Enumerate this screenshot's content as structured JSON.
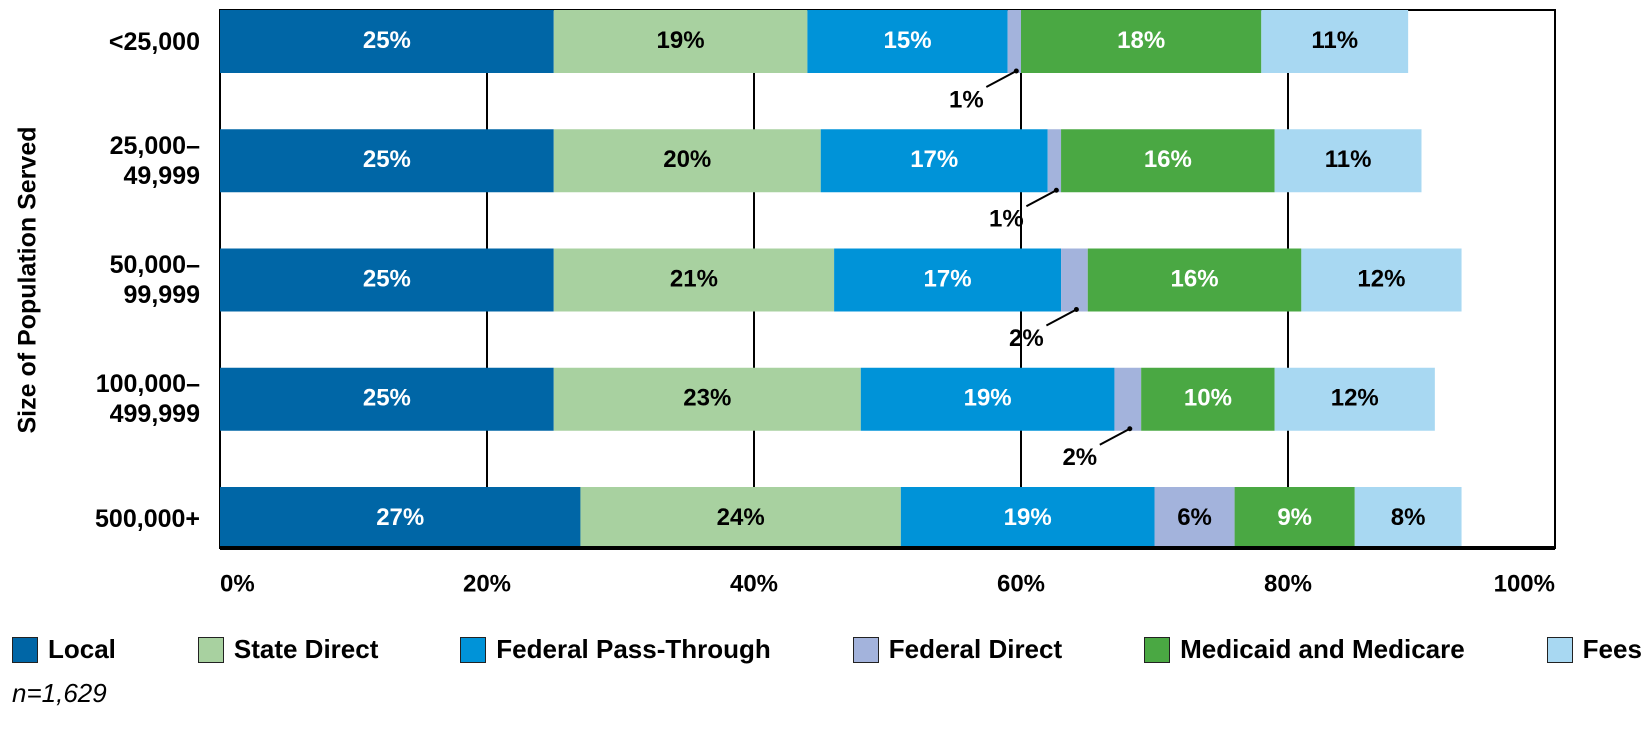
{
  "chart_data": {
    "type": "stacked-bar",
    "orientation": "horizontal",
    "y_axis_label": "Size of Population Served",
    "note": "n=1,629",
    "categories": [
      "<25,000",
      "25,000–49,999",
      "50,000–99,999",
      "100,000–499,999",
      "500,000+"
    ],
    "series": [
      {
        "name": "Local",
        "color": "#0066a6",
        "values": [
          25,
          25,
          25,
          25,
          27
        ],
        "value_labels": [
          "25%",
          "25%",
          "25%",
          "25%",
          "27%"
        ]
      },
      {
        "name": "State Direct",
        "color": "#a8d1a0",
        "values": [
          19,
          20,
          21,
          23,
          24
        ],
        "value_labels": [
          "19%",
          "20%",
          "21%",
          "23%",
          "24%"
        ]
      },
      {
        "name": "Federal Pass-Through",
        "color": "#0093d8",
        "values": [
          15,
          17,
          17,
          19,
          19
        ],
        "value_labels": [
          "15%",
          "17%",
          "17%",
          "19%",
          "19%"
        ]
      },
      {
        "name": "Federal Direct",
        "color": "#a3b3dc",
        "values": [
          1,
          1,
          2,
          2,
          6
        ],
        "value_labels": [
          "1%",
          "1%",
          "2%",
          "2%",
          "6%"
        ]
      },
      {
        "name": "Medicaid and Medicare",
        "color": "#4aa843",
        "values": [
          18,
          16,
          16,
          10,
          9
        ],
        "value_labels": [
          "18%",
          "16%",
          "16%",
          "10%",
          "9%"
        ]
      },
      {
        "name": "Fees",
        "color": "#a8d8f2",
        "values": [
          11,
          11,
          12,
          12,
          8
        ],
        "value_labels": [
          "11%",
          "11%",
          "12%",
          "12%",
          "8%"
        ]
      }
    ],
    "xlim": [
      0,
      100
    ],
    "xticks": [
      {
        "value": 0,
        "label": "0%"
      },
      {
        "value": 20,
        "label": "20%"
      },
      {
        "value": 40,
        "label": "40%"
      },
      {
        "value": 60,
        "label": "60%"
      },
      {
        "value": 80,
        "label": "80%"
      },
      {
        "value": 100,
        "label": "100%"
      }
    ],
    "grid": true
  }
}
